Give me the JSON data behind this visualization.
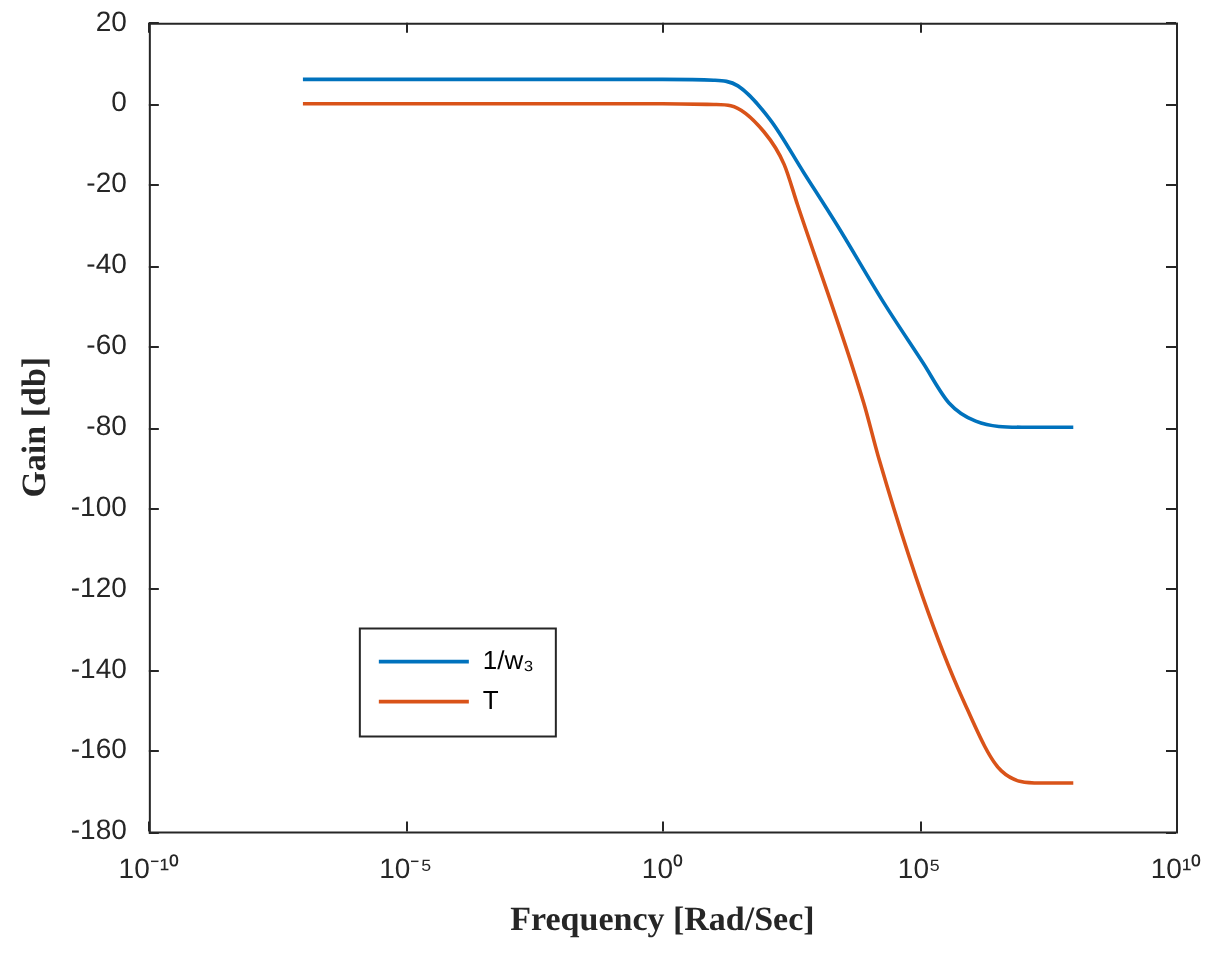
{
  "chart_data": {
    "type": "line",
    "xlabel": "Frequency [Rad/Sec]",
    "ylabel": "Gain [db]",
    "log": "x",
    "xlim": [
      1e-10,
      10000000000.0
    ],
    "xticks": [
      {
        "value": 1e-10,
        "label": "10⁻¹⁰"
      },
      {
        "value": 1e-05,
        "label": "10⁻⁵"
      },
      {
        "value": 1,
        "label": "10⁰"
      },
      {
        "value": 100000.0,
        "label": "10⁵"
      },
      {
        "value": 10000000000.0,
        "label": "10¹⁰"
      }
    ],
    "ylim": [
      -180,
      20
    ],
    "yticks": [
      -180,
      -160,
      -140,
      -120,
      -100,
      -80,
      -60,
      -40,
      -20,
      0,
      20
    ],
    "grid": false,
    "legend": "bottom left",
    "marker": "none",
    "line_style": "solid",
    "series": [
      {
        "name": "1/w₃",
        "color": "#0072bd",
        "x": [
          1e-07,
          1,
          10,
          29.5,
          126,
          562,
          2512,
          19953,
          117490,
          380189,
          1258925,
          10000000.0,
          100000000.0
        ],
        "values": [
          6,
          6,
          5.8,
          4.4,
          -4,
          -17,
          -30,
          -49,
          -64,
          -74,
          -78.5,
          -80,
          -80
        ]
      },
      {
        "name": "T",
        "color": "#d95319",
        "x": [
          1e-07,
          1,
          10,
          21.4,
          95.5,
          234,
          427,
          8318,
          16596,
          117490,
          691831,
          3981072,
          22908677,
          100000000.0
        ],
        "values": [
          0,
          0,
          -0.2,
          -0.5,
          -7,
          -15,
          -25,
          -74,
          -88,
          -122,
          -147,
          -165,
          -168,
          -168
        ]
      }
    ]
  }
}
